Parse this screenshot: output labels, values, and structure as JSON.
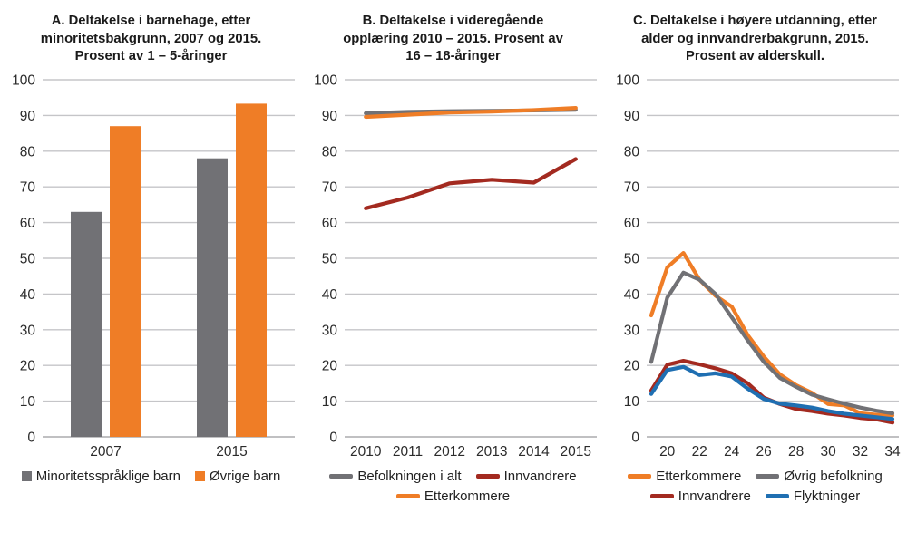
{
  "page": {
    "background": "#ffffff"
  },
  "colors": {
    "gray": "#717175",
    "orange": "#EF7D26",
    "dark_red": "#A32A20",
    "blue": "#1F6FB2",
    "gridline": "#C5C5C8",
    "axis_line": "#ABABAE",
    "text": "#2b2b2b"
  },
  "chart_data": [
    {
      "id": "barnehage",
      "type": "bar",
      "title": "A. Deltakelse i barnehage, etter minoritetsbakgrunn, 2007 og 2015. Prosent av 1 – 5-åringer",
      "categories": [
        "2007",
        "2015"
      ],
      "series": [
        {
          "name": "Minoritetsspråklige barn",
          "color_key": "gray",
          "values": [
            63,
            78
          ]
        },
        {
          "name": "Øvrige barn",
          "color_key": "orange",
          "values": [
            87,
            93.3
          ]
        }
      ],
      "ylim": [
        0,
        100
      ],
      "ytick_step": 10,
      "grid": true,
      "legend_position": "bottom",
      "legend_rows": [
        [
          0,
          1
        ]
      ]
    },
    {
      "id": "videregaende",
      "type": "line",
      "title": "B. Deltakelse i videregående opplæring 2010 – 2015. Prosent av 16 – 18-åringer",
      "categories": [
        "2010",
        "2011",
        "2012",
        "2013",
        "2014",
        "2015"
      ],
      "series": [
        {
          "name": "Befolkningen i alt",
          "color_key": "gray",
          "values": [
            90.6,
            91.0,
            91.2,
            91.3,
            91.4,
            91.6
          ]
        },
        {
          "name": "Innvandrere",
          "color_key": "dark_red",
          "values": [
            64.0,
            67.0,
            71.0,
            72.0,
            71.2,
            77.8
          ]
        },
        {
          "name": "Etterkommere",
          "color_key": "orange",
          "values": [
            89.6,
            90.2,
            90.8,
            91.1,
            91.5,
            92.1
          ]
        }
      ],
      "ylim": [
        0,
        100
      ],
      "ytick_step": 10,
      "grid": true,
      "legend_position": "bottom",
      "legend_rows": [
        [
          0,
          1
        ],
        [
          2
        ]
      ]
    },
    {
      "id": "hoyere-utdanning",
      "type": "line",
      "title": "C. Deltakelse i høyere utdanning, etter alder og innvandrerbakgrunn, 2015. Prosent av alderskull.",
      "x": [
        19,
        20,
        21,
        22,
        23,
        24,
        25,
        26,
        27,
        28,
        29,
        30,
        31,
        32,
        33,
        34
      ],
      "xlim": [
        19,
        34
      ],
      "xticks": [
        20,
        22,
        24,
        26,
        28,
        30,
        32,
        34
      ],
      "series": [
        {
          "name": "Etterkommere",
          "color_key": "orange",
          "values": [
            34,
            47.5,
            51.5,
            44,
            39.5,
            36.5,
            28.5,
            22.5,
            17.5,
            14.5,
            12.3,
            9.2,
            8.8,
            6.6,
            6.2,
            6
          ]
        },
        {
          "name": "Øvrig befolkning",
          "color_key": "gray",
          "values": [
            21,
            39,
            46,
            44,
            40,
            33.5,
            27,
            21,
            16.5,
            14,
            11.8,
            10.5,
            9.3,
            8.2,
            7.3,
            6.6
          ]
        },
        {
          "name": "Innvandrere",
          "color_key": "dark_red",
          "values": [
            13,
            20.2,
            21.3,
            20.3,
            19.2,
            17.8,
            15,
            11,
            9.2,
            7.8,
            7.2,
            6.5,
            6,
            5.3,
            4.9,
            4
          ]
        },
        {
          "name": "Flyktninger",
          "color_key": "blue",
          "values": [
            12,
            18.7,
            19.6,
            17.3,
            17.8,
            16.9,
            13.5,
            10.6,
            9.3,
            8.8,
            8.2,
            7.2,
            6.5,
            6,
            5.5,
            5
          ]
        }
      ],
      "ylim": [
        0,
        100
      ],
      "ytick_step": 10,
      "grid": true,
      "legend_position": "bottom",
      "legend_rows": [
        [
          0,
          1
        ],
        [
          2,
          3
        ]
      ]
    }
  ]
}
